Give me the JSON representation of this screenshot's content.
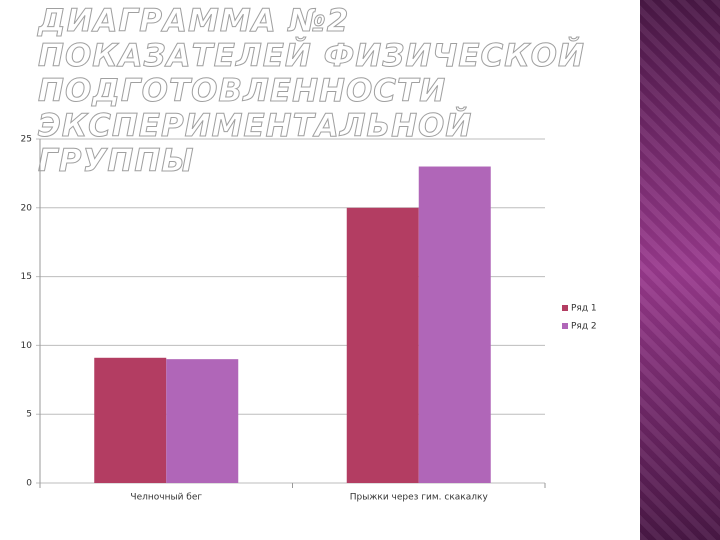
{
  "chart_data": {
    "type": "bar",
    "title": "ДИАГРАММА №2 ПОКАЗАТЕЛЕЙ ФИЗИЧЕСКОЙ ПОДГОТОВЛЕННОСТИ ЭКСПЕРИМЕНТАЛЬНОЙ ГРУППЫ",
    "categories": [
      "Челночный бег",
      "Прыжки через гим. скакалку"
    ],
    "series": [
      {
        "name": "Ряд 1",
        "color": "#b33d62",
        "values": [
          9.1,
          20
        ]
      },
      {
        "name": "Ряд 2",
        "color": "#b066b8",
        "values": [
          9.0,
          23
        ]
      }
    ],
    "ylim": [
      0,
      25
    ],
    "yticks": [
      0,
      5,
      10,
      15,
      20,
      25
    ],
    "grid": true,
    "legend": "right"
  }
}
